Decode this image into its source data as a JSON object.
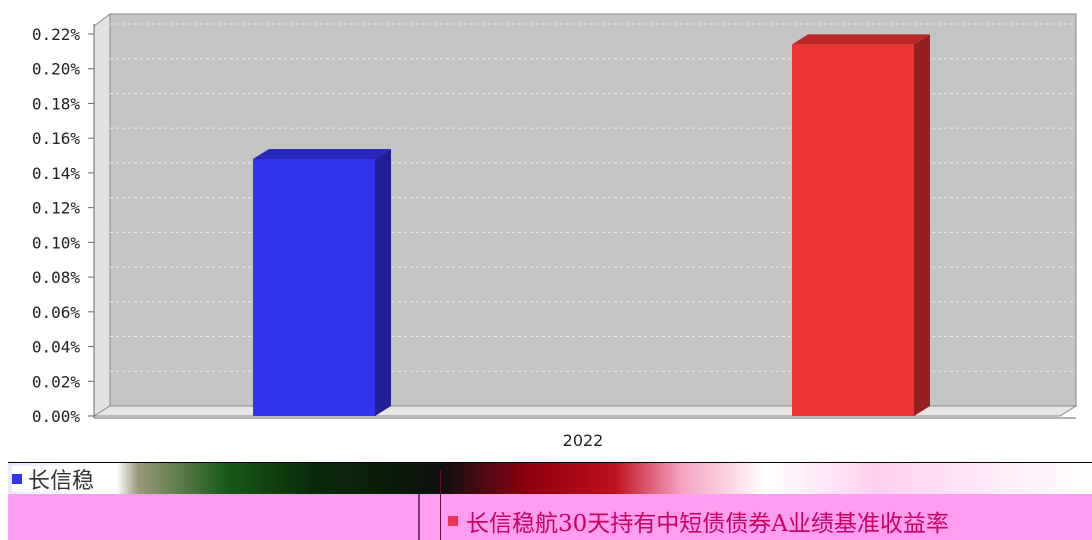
{
  "chart_data": {
    "type": "bar",
    "categories": [
      "2022",
      "2022"
    ],
    "x_label": "2022",
    "series": [
      {
        "name": "长信稳航30天持有中短债债券A",
        "value": 0.148,
        "color": "#3333ee"
      },
      {
        "name": "长信稳航30天持有中短债债券A业绩基准收益率",
        "value": 0.214,
        "color": "#ee3333"
      }
    ],
    "y_ticks": [
      "0.00%",
      "0.02%",
      "0.04%",
      "0.06%",
      "0.08%",
      "0.10%",
      "0.12%",
      "0.14%",
      "0.16%",
      "0.18%",
      "0.20%",
      "0.22%"
    ],
    "ylim": [
      0,
      0.22
    ],
    "unit": "%",
    "grid": true,
    "legend_position": "bottom"
  },
  "legend": {
    "item_a_label": "长信稳",
    "item_b_label": "长信稳航30天持有中短债债券A业绩基准收益率"
  }
}
